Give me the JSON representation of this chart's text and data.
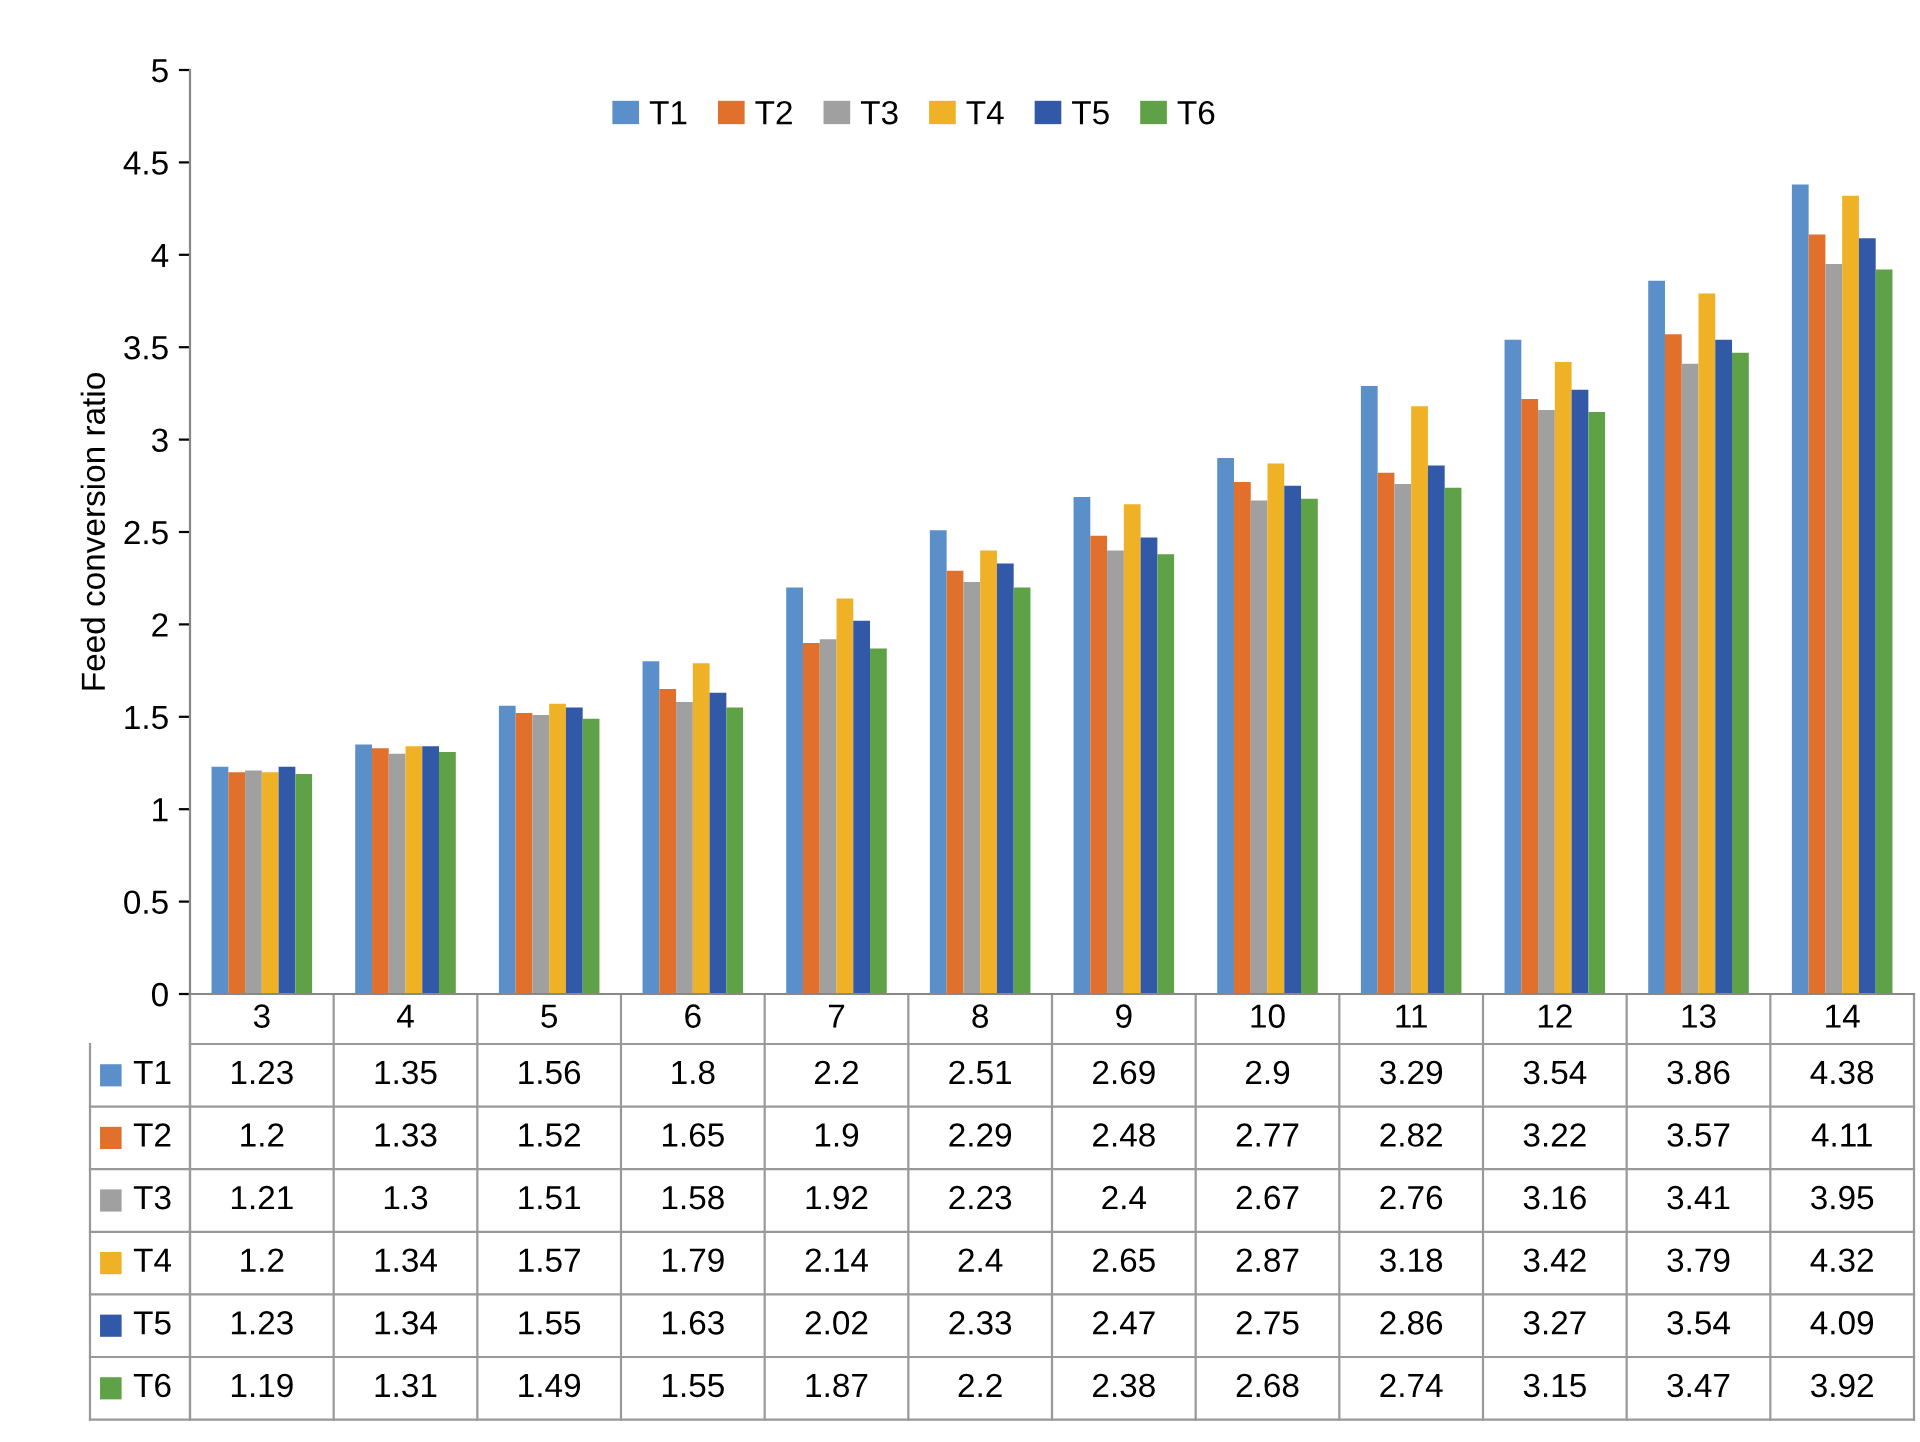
{
  "chart_data": {
    "type": "bar",
    "ylabel": "Feed conversion ratio",
    "categories": [
      "3",
      "4",
      "5",
      "6",
      "7",
      "8",
      "9",
      "10",
      "11",
      "12",
      "13",
      "14"
    ],
    "series": [
      {
        "name": "T1",
        "color": "#5b8fc9",
        "values": [
          1.23,
          1.35,
          1.56,
          1.8,
          2.2,
          2.51,
          2.69,
          2.9,
          3.29,
          3.54,
          3.86,
          4.38
        ]
      },
      {
        "name": "T2",
        "color": "#e0702c",
        "values": [
          1.2,
          1.33,
          1.52,
          1.65,
          1.9,
          2.29,
          2.48,
          2.77,
          2.82,
          3.22,
          3.57,
          4.11
        ]
      },
      {
        "name": "T3",
        "color": "#a0a0a0",
        "values": [
          1.21,
          1.3,
          1.51,
          1.58,
          1.92,
          2.23,
          2.4,
          2.67,
          2.76,
          3.16,
          3.41,
          3.95
        ]
      },
      {
        "name": "T4",
        "color": "#efb226",
        "values": [
          1.2,
          1.34,
          1.57,
          1.79,
          2.14,
          2.4,
          2.65,
          2.87,
          3.18,
          3.42,
          3.79,
          4.32
        ]
      },
      {
        "name": "T5",
        "color": "#3159a8",
        "values": [
          1.23,
          1.34,
          1.55,
          1.63,
          2.02,
          2.33,
          2.47,
          2.75,
          2.86,
          3.27,
          3.54,
          4.09
        ]
      },
      {
        "name": "T6",
        "color": "#5ea146",
        "values": [
          1.19,
          1.31,
          1.49,
          1.55,
          1.87,
          2.2,
          2.38,
          2.68,
          2.74,
          3.15,
          3.47,
          3.92
        ]
      }
    ],
    "ylim": [
      0,
      5
    ],
    "yticks": [
      0,
      0.5,
      1,
      1.5,
      2,
      2.5,
      3,
      3.5,
      4,
      4.5,
      5
    ],
    "legend": "top",
    "data_labels": true
  }
}
